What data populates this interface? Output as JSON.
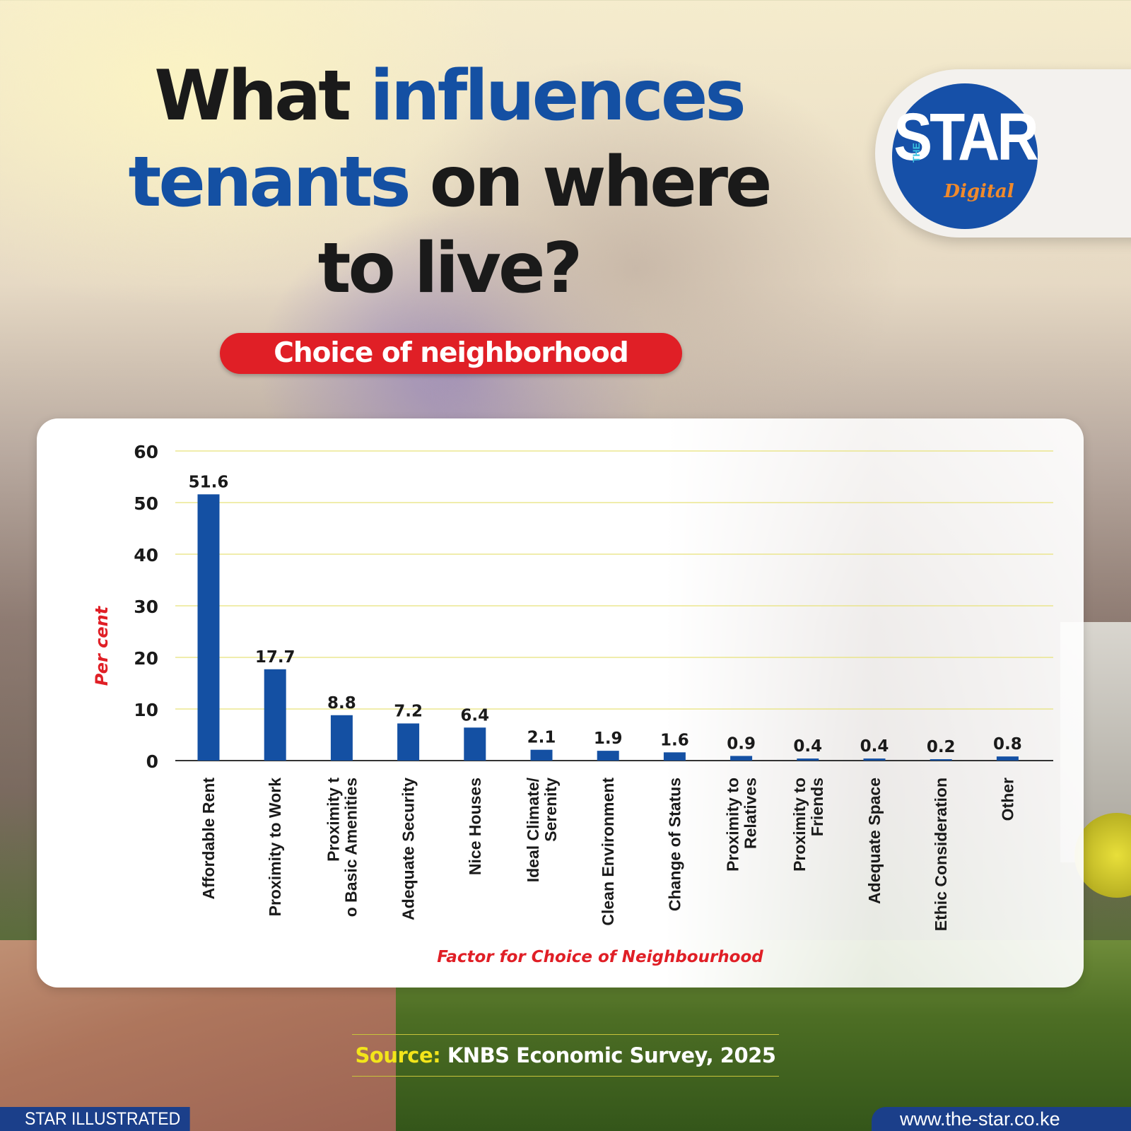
{
  "header": {
    "title_part1": "What ",
    "title_part2": "influences",
    "title_part3": "tenants",
    "title_part4": " on where",
    "title_part5": "to live?"
  },
  "logo": {
    "star": "STAR",
    "the": "THE",
    "digital": "Digital"
  },
  "subtitle": "Choice of neighborhood",
  "colors": {
    "accent_blue": "#1450a3",
    "bar_blue": "#1450a3",
    "pill_red": "#e01f26",
    "axis_title_red": "#e01f26",
    "grid_yellow": "#e8e27a",
    "source_yellow": "#f3e51a"
  },
  "chart_data": {
    "type": "bar",
    "categories": [
      "Affordable Rent",
      "Proximity to Work",
      "Proximity t\no Basic Amenities",
      "Adequate Security",
      "Nice Houses",
      "Ideal Climate/\nSerenity",
      "Clean Environment",
      "Change of Status",
      "Proximity to\nRelatives",
      "Proximity to\nFriends",
      "Adequate Space",
      "Ethic Consideration",
      "Other"
    ],
    "values": [
      51.6,
      17.7,
      8.8,
      7.2,
      6.4,
      2.1,
      1.9,
      1.6,
      0.9,
      0.4,
      0.4,
      0.2,
      0.8
    ],
    "value_labels": [
      "51.6",
      "17.7",
      "8.8",
      "7.2",
      "6.4",
      "2.1",
      "1.9",
      "1.6",
      "0.9",
      "0.4",
      "0.4",
      "0.2",
      "0.8"
    ],
    "y_ticks": [
      0,
      10,
      20,
      30,
      40,
      50,
      60
    ],
    "ylim": [
      0,
      60
    ],
    "xlabel": "Factor for Choice of Neighbourhood",
    "ylabel": "Per cent",
    "grid": true
  },
  "source": {
    "label": "Source:",
    "text": " KNBS Economic Survey, 2025"
  },
  "footer": {
    "left": "STAR ILLUSTRATED",
    "right": "www.the-star.co.ke"
  }
}
